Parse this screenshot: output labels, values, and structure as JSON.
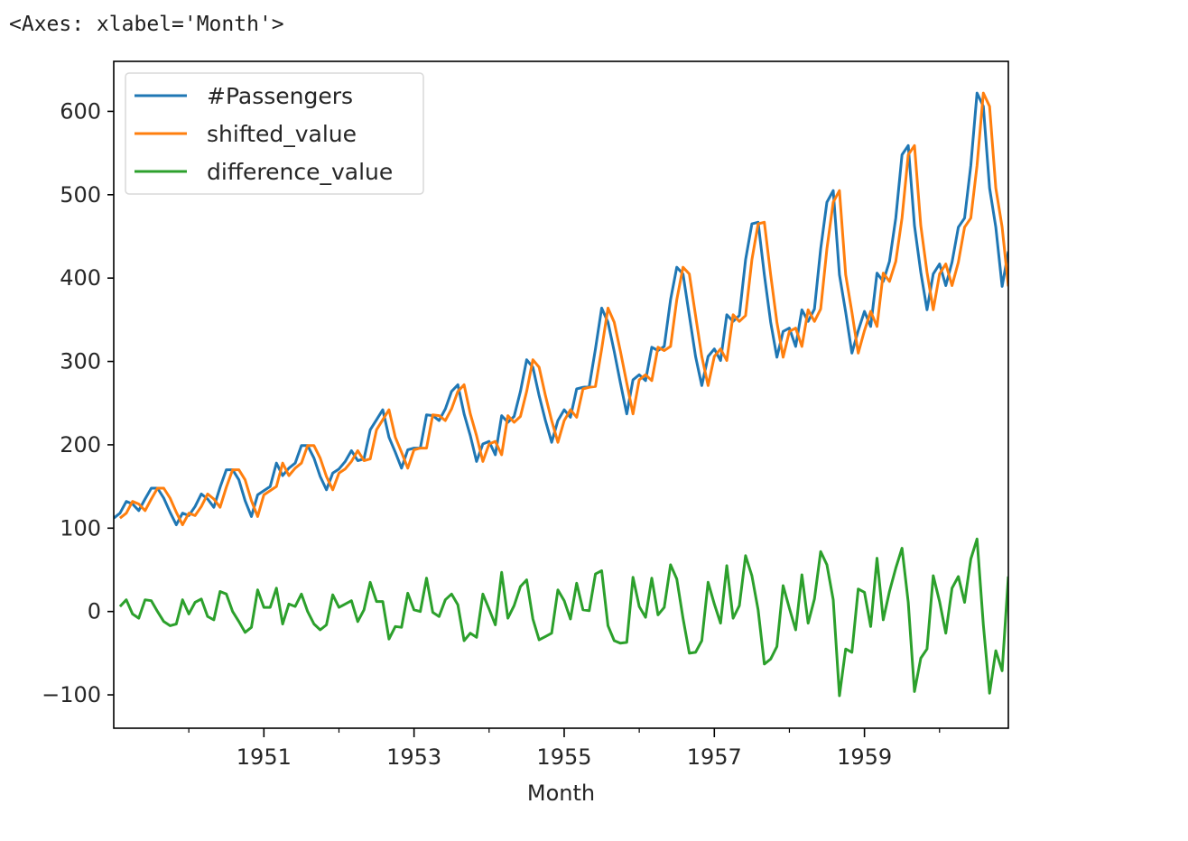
{
  "output_repr": "<Axes: xlabel='Month'>",
  "chart_data": {
    "type": "line",
    "xlabel": "Month",
    "ylabel": "",
    "x_start": "1949-01",
    "x_end": "1960-12",
    "xlim": [
      "1949-01",
      "1960-12"
    ],
    "ylim": [
      -140,
      660
    ],
    "x_major_ticks": [
      {
        "date": "1951-01",
        "label": "1951"
      },
      {
        "date": "1953-01",
        "label": "1953"
      },
      {
        "date": "1955-01",
        "label": "1955"
      },
      {
        "date": "1957-01",
        "label": "1957"
      },
      {
        "date": "1959-01",
        "label": "1959"
      }
    ],
    "x_minor_ticks": [
      "1950-01",
      "1952-01",
      "1954-01",
      "1956-01",
      "1958-01",
      "1960-01"
    ],
    "y_ticks": [
      {
        "value": 600,
        "label": "600"
      },
      {
        "value": 500,
        "label": "500"
      },
      {
        "value": 400,
        "label": "400"
      },
      {
        "value": 300,
        "label": "300"
      },
      {
        "value": 200,
        "label": "200"
      },
      {
        "value": 100,
        "label": "100"
      },
      {
        "value": 0,
        "label": "0"
      },
      {
        "value": -100,
        "label": "−100"
      }
    ],
    "grid": false,
    "legend_position": "upper-left",
    "series": [
      {
        "name": "#Passengers",
        "color": "#1f77b4",
        "values": [
          112,
          118,
          132,
          129,
          121,
          135,
          148,
          148,
          136,
          119,
          104,
          118,
          115,
          126,
          141,
          135,
          125,
          149,
          170,
          170,
          158,
          133,
          114,
          140,
          145,
          150,
          178,
          163,
          172,
          178,
          199,
          199,
          184,
          162,
          146,
          166,
          171,
          180,
          193,
          181,
          183,
          218,
          230,
          242,
          209,
          191,
          172,
          194,
          196,
          196,
          236,
          235,
          229,
          243,
          264,
          272,
          237,
          211,
          180,
          201,
          204,
          188,
          235,
          227,
          234,
          264,
          302,
          293,
          259,
          229,
          203,
          229,
          242,
          233,
          267,
          269,
          270,
          315,
          364,
          347,
          312,
          274,
          237,
          278,
          284,
          277,
          317,
          313,
          318,
          374,
          413,
          405,
          355,
          306,
          271,
          306,
          315,
          301,
          356,
          348,
          355,
          422,
          465,
          467,
          404,
          347,
          305,
          336,
          340,
          318,
          362,
          348,
          363,
          435,
          491,
          505,
          404,
          359,
          310,
          337,
          360,
          342,
          406,
          396,
          420,
          472,
          548,
          559,
          463,
          407,
          362,
          405,
          417,
          391,
          419,
          461,
          472,
          535,
          622,
          606,
          508,
          461,
          390,
          432
        ]
      },
      {
        "name": "shifted_value",
        "color": "#ff7f0e",
        "values": [
          null,
          112,
          118,
          132,
          129,
          121,
          135,
          148,
          148,
          136,
          119,
          104,
          118,
          115,
          126,
          141,
          135,
          125,
          149,
          170,
          170,
          158,
          133,
          114,
          140,
          145,
          150,
          178,
          163,
          172,
          178,
          199,
          199,
          184,
          162,
          146,
          166,
          171,
          180,
          193,
          181,
          183,
          218,
          230,
          242,
          209,
          191,
          172,
          194,
          196,
          196,
          236,
          235,
          229,
          243,
          264,
          272,
          237,
          211,
          180,
          201,
          204,
          188,
          235,
          227,
          234,
          264,
          302,
          293,
          259,
          229,
          203,
          229,
          242,
          233,
          267,
          269,
          270,
          315,
          364,
          347,
          312,
          274,
          237,
          278,
          284,
          277,
          317,
          313,
          318,
          374,
          413,
          405,
          355,
          306,
          271,
          306,
          315,
          301,
          356,
          348,
          355,
          422,
          465,
          467,
          404,
          347,
          305,
          336,
          340,
          318,
          362,
          348,
          363,
          435,
          491,
          505,
          404,
          359,
          310,
          337,
          360,
          342,
          406,
          396,
          420,
          472,
          548,
          559,
          463,
          407,
          362,
          405,
          417,
          391,
          419,
          461,
          472,
          535,
          622,
          606,
          508,
          461,
          390
        ]
      },
      {
        "name": "difference_value",
        "color": "#2ca02c",
        "values": [
          null,
          6,
          14,
          -3,
          -8,
          14,
          13,
          0,
          -12,
          -17,
          -15,
          14,
          -3,
          11,
          15,
          -6,
          -10,
          24,
          21,
          0,
          -12,
          -25,
          -19,
          26,
          5,
          5,
          28,
          -15,
          9,
          6,
          21,
          0,
          -15,
          -22,
          -16,
          20,
          5,
          9,
          13,
          -12,
          2,
          35,
          12,
          12,
          -33,
          -18,
          -19,
          22,
          2,
          0,
          40,
          -1,
          -6,
          14,
          21,
          8,
          -35,
          -26,
          -31,
          21,
          3,
          -16,
          47,
          -8,
          7,
          30,
          38,
          -9,
          -34,
          -30,
          -26,
          26,
          13,
          -9,
          34,
          2,
          1,
          45,
          49,
          -17,
          -35,
          -38,
          -37,
          41,
          6,
          -7,
          40,
          -4,
          5,
          56,
          39,
          -8,
          -50,
          -49,
          -35,
          35,
          9,
          -14,
          55,
          -8,
          7,
          67,
          43,
          2,
          -63,
          -57,
          -42,
          31,
          4,
          -22,
          44,
          -14,
          15,
          72,
          56,
          14,
          -101,
          -45,
          -49,
          27,
          23,
          -18,
          64,
          -10,
          24,
          52,
          76,
          11,
          -96,
          -56,
          -45,
          43,
          12,
          -26,
          28,
          42,
          11,
          63,
          87,
          -16,
          -98,
          -47,
          -71,
          42
        ]
      }
    ]
  }
}
